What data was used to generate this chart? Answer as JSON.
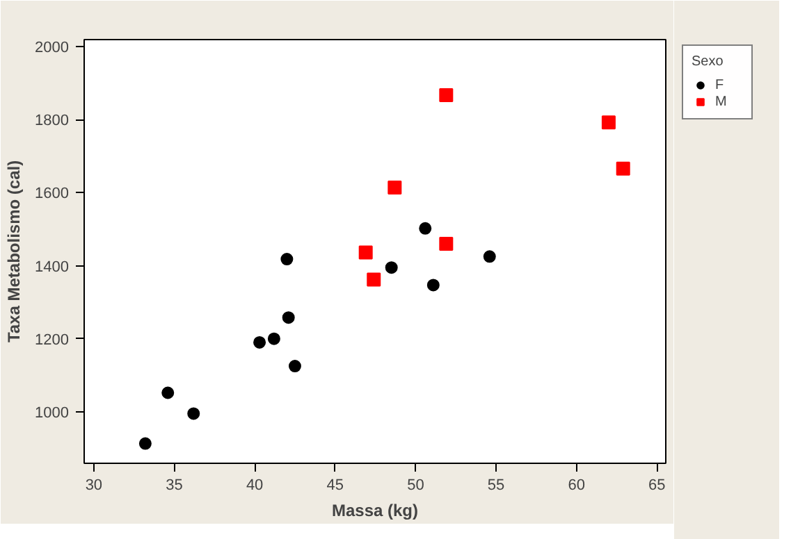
{
  "chart_data": {
    "type": "scatter",
    "xlabel": "Massa (kg)",
    "ylabel": "Taxa Metabolismo (cal)",
    "legend_title": "Sexo",
    "legend": "right",
    "grid": false,
    "xlim": [
      29.4,
      65.55
    ],
    "ylim": [
      859,
      2019
    ],
    "xticks": [
      30,
      35,
      40,
      45,
      50,
      55,
      60,
      65
    ],
    "yticks": [
      1000,
      1200,
      1400,
      1600,
      1800,
      2000
    ],
    "series": [
      {
        "name": "F",
        "color": "#000000",
        "marker": "circle",
        "x": [
          33.2,
          34.6,
          36.2,
          40.3,
          41.2,
          42.1,
          42.0,
          42.5,
          48.5,
          50.6,
          51.1,
          54.6
        ],
        "values": [
          913,
          1052,
          995,
          1190,
          1200,
          1258,
          1418,
          1125,
          1395,
          1502,
          1347,
          1425
        ]
      },
      {
        "name": "M",
        "color": "#ff0000",
        "marker": "square",
        "x": [
          46.9,
          47.4,
          48.7,
          51.9,
          51.9,
          62.0,
          62.9
        ],
        "values": [
          1436,
          1362,
          1614,
          1460,
          1867,
          1792,
          1666
        ]
      }
    ]
  }
}
